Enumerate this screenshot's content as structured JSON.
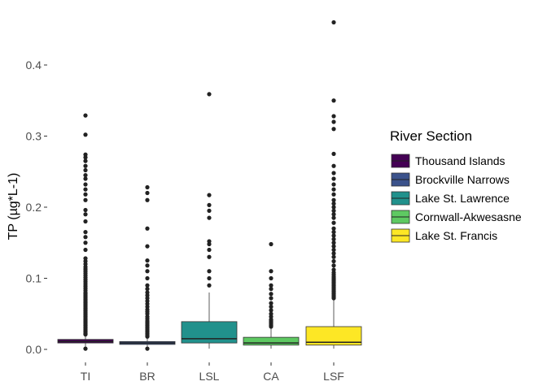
{
  "chart_data": {
    "type": "boxplot",
    "title": "",
    "xlabel": "",
    "ylabel": "TP (µg*L-1)",
    "ylim": [
      0,
      0.46
    ],
    "yticks": [
      "0.0",
      "0.1",
      "0.2",
      "0.3",
      "0.4"
    ],
    "ytick_values": [
      0.0,
      0.1,
      0.2,
      0.3,
      0.4
    ],
    "grid": false,
    "legend": {
      "title": "River Section",
      "position": "right"
    },
    "categories": [
      "TI",
      "BR",
      "LSL",
      "CA",
      "LSF"
    ],
    "series": [
      {
        "name": "Thousand Islands",
        "category": "TI",
        "color": "#440154",
        "min": 0.0,
        "q1": 0.009,
        "median": 0.011,
        "q3": 0.014,
        "max": 0.02,
        "outliers": [
          0.001,
          0.021,
          0.022,
          0.024,
          0.026,
          0.028,
          0.03,
          0.032,
          0.034,
          0.036,
          0.038,
          0.04,
          0.042,
          0.044,
          0.046,
          0.048,
          0.05,
          0.052,
          0.054,
          0.056,
          0.058,
          0.06,
          0.062,
          0.064,
          0.066,
          0.068,
          0.07,
          0.072,
          0.074,
          0.076,
          0.078,
          0.08,
          0.083,
          0.086,
          0.089,
          0.092,
          0.095,
          0.098,
          0.101,
          0.104,
          0.107,
          0.11,
          0.113,
          0.116,
          0.12,
          0.124,
          0.128,
          0.14,
          0.15,
          0.158,
          0.165,
          0.18,
          0.19,
          0.196,
          0.21,
          0.218,
          0.225,
          0.232,
          0.24,
          0.245,
          0.252,
          0.258,
          0.265,
          0.27,
          0.274,
          0.302,
          0.329
        ]
      },
      {
        "name": "Brockville Narrows",
        "category": "BR",
        "color": "#3b528b",
        "min": 0.002,
        "q1": 0.007,
        "median": 0.009,
        "q3": 0.011,
        "max": 0.016,
        "outliers": [
          0.001,
          0.018,
          0.02,
          0.022,
          0.024,
          0.026,
          0.028,
          0.03,
          0.032,
          0.034,
          0.036,
          0.038,
          0.04,
          0.043,
          0.046,
          0.05,
          0.053,
          0.056,
          0.06,
          0.064,
          0.068,
          0.072,
          0.076,
          0.08,
          0.085,
          0.09,
          0.1,
          0.11,
          0.118,
          0.125,
          0.145,
          0.17,
          0.21,
          0.22,
          0.228
        ]
      },
      {
        "name": "Lake St. Lawrence",
        "category": "LSL",
        "color": "#21918c",
        "min": 0.001,
        "q1": 0.009,
        "median": 0.015,
        "q3": 0.039,
        "max": 0.08,
        "outliers": [
          0.09,
          0.1,
          0.11,
          0.13,
          0.14,
          0.148,
          0.152,
          0.185,
          0.195,
          0.203,
          0.217,
          0.359
        ]
      },
      {
        "name": "Cornwall-Akwesasne",
        "category": "CA",
        "color": "#5ec962",
        "min": 0.001,
        "q1": 0.006,
        "median": 0.009,
        "q3": 0.017,
        "max": 0.03,
        "outliers": [
          0.032,
          0.034,
          0.036,
          0.038,
          0.04,
          0.042,
          0.046,
          0.05,
          0.055,
          0.06,
          0.065,
          0.072,
          0.078,
          0.085,
          0.09,
          0.1,
          0.11,
          0.148
        ]
      },
      {
        "name": "Lake St. Francis",
        "category": "LSF",
        "color": "#fde725",
        "min": 0.001,
        "q1": 0.006,
        "median": 0.01,
        "q3": 0.032,
        "max": 0.07,
        "outliers": [
          0.072,
          0.074,
          0.076,
          0.078,
          0.08,
          0.082,
          0.084,
          0.086,
          0.088,
          0.09,
          0.092,
          0.094,
          0.096,
          0.098,
          0.1,
          0.102,
          0.105,
          0.108,
          0.112,
          0.118,
          0.124,
          0.13,
          0.135,
          0.14,
          0.145,
          0.15,
          0.155,
          0.16,
          0.165,
          0.17,
          0.178,
          0.185,
          0.19,
          0.195,
          0.2,
          0.205,
          0.21,
          0.218,
          0.225,
          0.232,
          0.24,
          0.248,
          0.258,
          0.275,
          0.31,
          0.32,
          0.328,
          0.35,
          0.46
        ]
      }
    ]
  }
}
